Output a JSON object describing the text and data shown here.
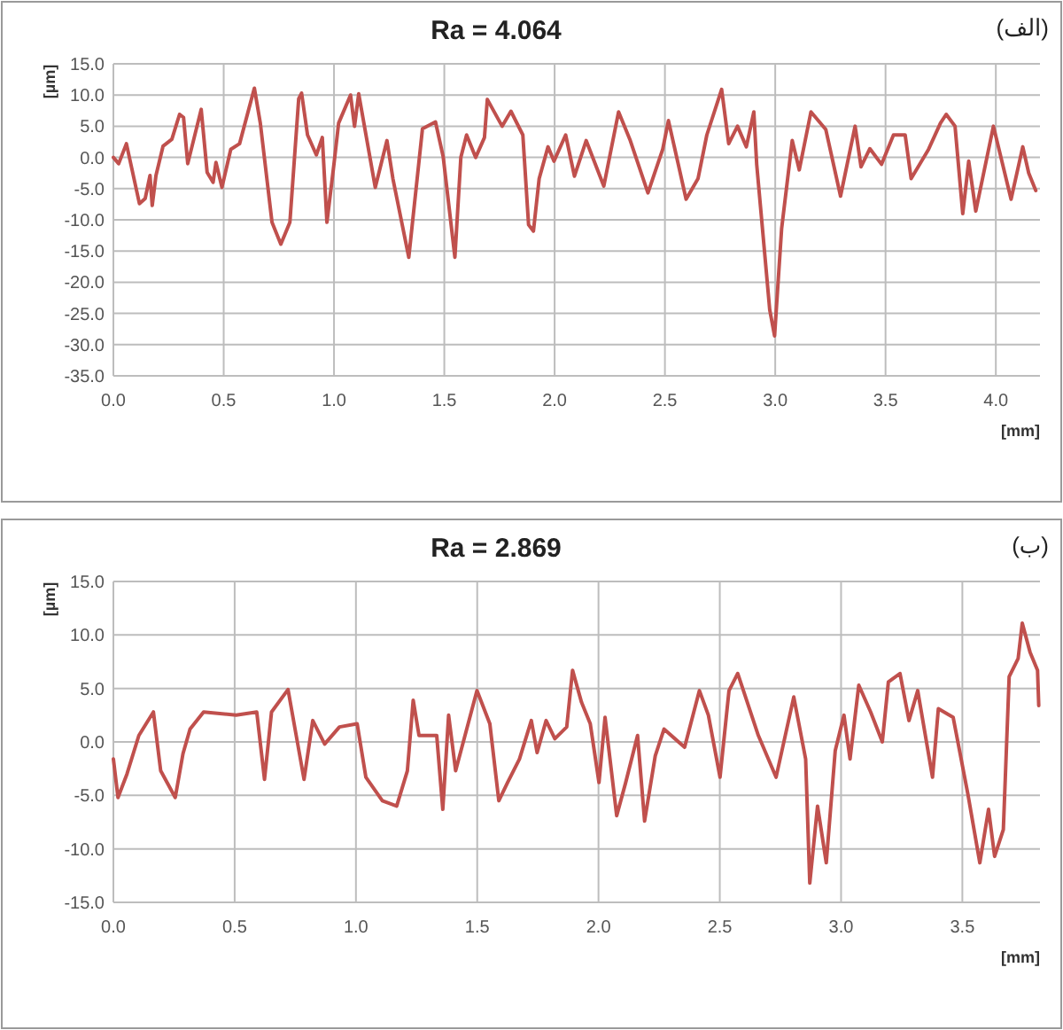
{
  "chart_data": [
    {
      "type": "line",
      "title": "Ra = 4.064",
      "xlabel": "[mm]",
      "ylabel": "[µm]",
      "annotations": [
        "(الف)"
      ],
      "grid": true,
      "marker": "none",
      "line_style": "solid",
      "xlim": [
        0,
        4.2
      ],
      "xticks": [
        {
          "value": 0,
          "label": "0.0"
        },
        {
          "value": 0.5,
          "label": "0.5"
        },
        {
          "value": 1,
          "label": "1.0"
        },
        {
          "value": 1.5,
          "label": "1.5"
        },
        {
          "value": 2,
          "label": "2.0"
        },
        {
          "value": 2.5,
          "label": "2.5"
        },
        {
          "value": 3,
          "label": "3.0"
        },
        {
          "value": 3.5,
          "label": "3.5"
        },
        {
          "value": 4,
          "label": "4.0"
        }
      ],
      "ylim": [
        -35,
        15
      ],
      "yticks": [
        {
          "value": -35,
          "label": "-35.0"
        },
        {
          "value": -30,
          "label": "-30.0"
        },
        {
          "value": -25,
          "label": "-25.0"
        },
        {
          "value": -20,
          "label": "-20.0"
        },
        {
          "value": -15,
          "label": "-15.0"
        },
        {
          "value": -10,
          "label": "-10.0"
        },
        {
          "value": -5,
          "label": "-5.0"
        },
        {
          "value": 0,
          "label": "0.0"
        },
        {
          "value": 5,
          "label": "5.0"
        },
        {
          "value": 10,
          "label": "10.0"
        },
        {
          "value": 15,
          "label": "15.0"
        }
      ],
      "series": [
        {
          "color": "#c0504d",
          "x": [
            0,
            0.024,
            0.059,
            0.118,
            0.144,
            0.166,
            0.176,
            0.193,
            0.225,
            0.265,
            0.3,
            0.318,
            0.337,
            0.398,
            0.425,
            0.452,
            0.465,
            0.492,
            0.532,
            0.572,
            0.639,
            0.666,
            0.719,
            0.759,
            0.8,
            0.84,
            0.853,
            0.88,
            0.92,
            0.947,
            0.968,
            1.0,
            1.021,
            1.075,
            1.093,
            1.112,
            1.187,
            1.24,
            1.267,
            1.339,
            1.401,
            1.46,
            1.495,
            1.548,
            1.575,
            1.601,
            1.642,
            1.682,
            1.695,
            1.762,
            1.802,
            1.856,
            1.882,
            1.904,
            1.93,
            1.97,
            1.997,
            2.05,
            2.09,
            2.143,
            2.223,
            2.29,
            2.343,
            2.423,
            2.49,
            2.516,
            2.596,
            2.65,
            2.69,
            2.757,
            2.789,
            2.829,
            2.869,
            2.903,
            2.916,
            2.975,
            2.997,
            3.029,
            3.077,
            3.109,
            3.162,
            3.229,
            3.296,
            3.362,
            3.389,
            3.429,
            3.482,
            3.536,
            3.589,
            3.616,
            3.695,
            3.749,
            3.775,
            3.815,
            3.85,
            3.877,
            3.909,
            3.989,
            4.069,
            4.122,
            4.149,
            4.181
          ],
          "values": [
            0,
            -1,
            2.2,
            -7.4,
            -6.6,
            -2.9,
            -7.7,
            -2.9,
            1.8,
            2.9,
            6.9,
            6.4,
            -1,
            7.7,
            -2.4,
            -4,
            -0.8,
            -4.8,
            1.3,
            2.2,
            11.1,
            5.5,
            -10.4,
            -13.9,
            -10.4,
            9.4,
            10.3,
            3.6,
            0.4,
            3.2,
            -10.4,
            -1,
            5.5,
            10,
            5,
            10.2,
            -4.8,
            2.7,
            -3.4,
            -16,
            4.6,
            5.7,
            0.1,
            -16,
            0,
            3.6,
            0,
            3.2,
            9.3,
            5,
            7.4,
            3.6,
            -10.8,
            -11.8,
            -3.4,
            1.7,
            -0.6,
            3.6,
            -3,
            2.7,
            -4.6,
            7.3,
            2.7,
            -5.7,
            1.3,
            5.9,
            -6.7,
            -3.4,
            3.6,
            10.9,
            2.2,
            5,
            1.7,
            7.3,
            -1.1,
            -24.4,
            -28.6,
            -11.4,
            2.7,
            -2,
            7.3,
            4.5,
            -6.2,
            5,
            -1.5,
            1.4,
            -1.1,
            3.6,
            3.6,
            -3.4,
            1.3,
            5.5,
            6.9,
            5,
            -9,
            -0.6,
            -8.6,
            5,
            -6.7,
            1.7,
            -2.5,
            -5.3
          ]
        }
      ]
    },
    {
      "type": "line",
      "title": "Ra = 2.869",
      "xlabel": "[mm]",
      "ylabel": "[µm]",
      "annotations": [
        "(ب)"
      ],
      "grid": true,
      "marker": "none",
      "line_style": "solid",
      "xlim": [
        0,
        3.82
      ],
      "xticks": [
        {
          "value": 0,
          "label": "0.0"
        },
        {
          "value": 0.5,
          "label": "0.5"
        },
        {
          "value": 1,
          "label": "1.0"
        },
        {
          "value": 1.5,
          "label": "1.5"
        },
        {
          "value": 2,
          "label": "2.0"
        },
        {
          "value": 2.5,
          "label": "2.5"
        },
        {
          "value": 3,
          "label": "3.0"
        },
        {
          "value": 3.5,
          "label": "3.5"
        }
      ],
      "ylim": [
        -15,
        15
      ],
      "yticks": [
        {
          "value": -15,
          "label": "-15.0"
        },
        {
          "value": -10,
          "label": "-10.0"
        },
        {
          "value": -5,
          "label": "-5.0"
        },
        {
          "value": 0,
          "label": "0.0"
        },
        {
          "value": 5,
          "label": "5.0"
        },
        {
          "value": 10,
          "label": "10.0"
        },
        {
          "value": 15,
          "label": "15.0"
        }
      ],
      "series": [
        {
          "color": "#c0504d",
          "x": [
            0,
            0.019,
            0.056,
            0.105,
            0.165,
            0.195,
            0.255,
            0.287,
            0.316,
            0.372,
            0.506,
            0.591,
            0.623,
            0.652,
            0.72,
            0.749,
            0.786,
            0.822,
            0.871,
            0.932,
            1.005,
            1.041,
            1.109,
            1.168,
            1.212,
            1.236,
            1.26,
            1.333,
            1.358,
            1.382,
            1.411,
            1.499,
            1.552,
            1.589,
            1.625,
            1.674,
            1.723,
            1.747,
            1.784,
            1.82,
            1.869,
            1.893,
            1.93,
            1.966,
            2.002,
            2.027,
            2.075,
            2.112,
            2.161,
            2.19,
            2.234,
            2.27,
            2.355,
            2.416,
            2.453,
            2.501,
            2.538,
            2.574,
            2.659,
            2.732,
            2.805,
            2.854,
            2.871,
            2.903,
            2.939,
            2.976,
            3.012,
            3.037,
            3.073,
            3.122,
            3.17,
            3.195,
            3.243,
            3.28,
            3.316,
            3.377,
            3.401,
            3.462,
            3.523,
            3.572,
            3.608,
            3.633,
            3.669,
            3.693,
            3.73,
            3.747,
            3.779,
            3.81,
            3.815
          ],
          "values": [
            -1.6,
            -5.2,
            -3,
            0.6,
            2.8,
            -2.7,
            -5.2,
            -1.1,
            1.2,
            2.8,
            2.5,
            2.8,
            -3.5,
            2.8,
            4.9,
            1.2,
            -3.5,
            2,
            -0.2,
            1.4,
            1.7,
            -3.3,
            -5.5,
            -6,
            -2.7,
            3.9,
            0.6,
            0.6,
            -6.3,
            2.5,
            -2.7,
            4.8,
            1.7,
            -5.5,
            -3.8,
            -1.6,
            2,
            -1,
            2,
            0.3,
            1.4,
            6.7,
            3.7,
            1.7,
            -3.8,
            2.3,
            -6.9,
            -3.8,
            0.6,
            -7.4,
            -1.3,
            1.2,
            -0.5,
            4.8,
            2.5,
            -3.3,
            4.8,
            6.4,
            0.6,
            -3.3,
            4.2,
            -1.6,
            -13.2,
            -6,
            -11.3,
            -0.8,
            2.5,
            -1.6,
            5.3,
            2.8,
            0,
            5.6,
            6.4,
            2,
            4.8,
            -3.3,
            3.1,
            2.3,
            -4.9,
            -11.3,
            -6.3,
            -10.7,
            -8.2,
            6.1,
            7.8,
            11.1,
            8.4,
            6.7,
            3.4
          ]
        }
      ]
    }
  ]
}
